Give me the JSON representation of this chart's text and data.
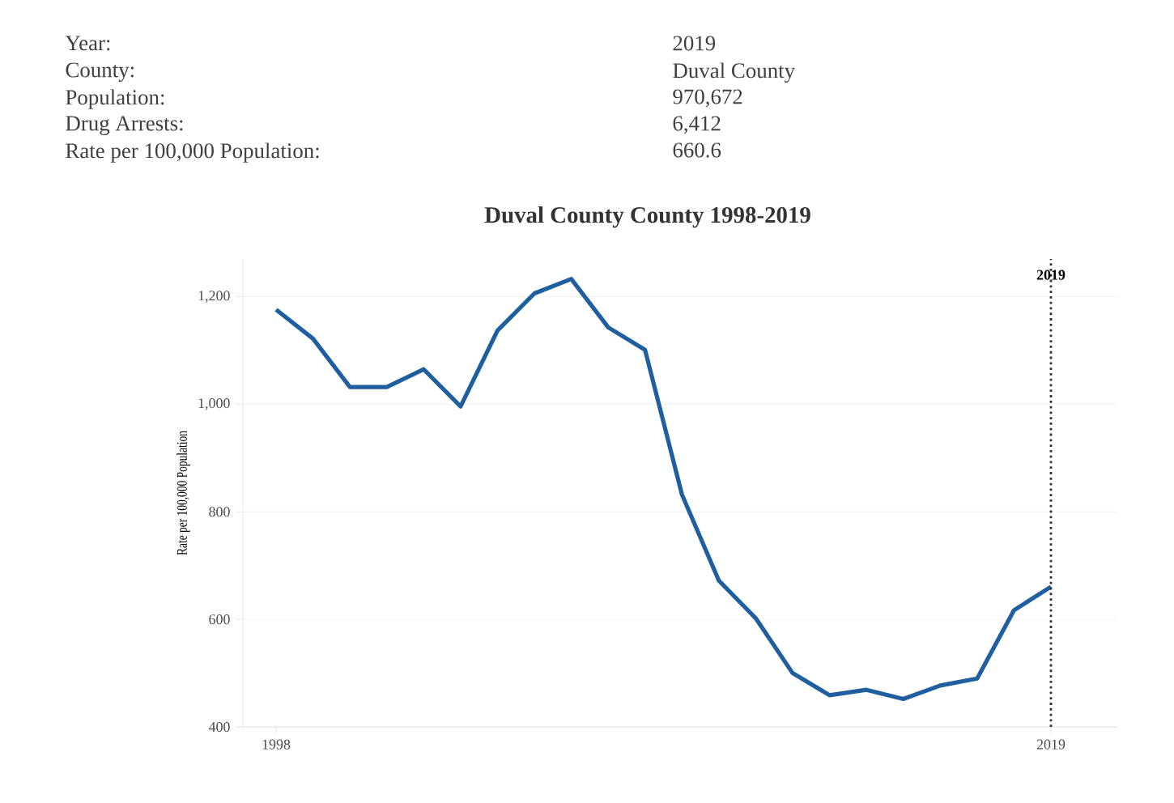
{
  "chart_data": {
    "type": "line",
    "title": "Duval County County 1998-2019",
    "ylabel": "Rate per 100,000 Population",
    "annotations": [
      "Year:",
      "2019",
      "County:",
      "Duval County",
      "Population:",
      "970,672",
      "Drug Arrests:",
      "6,412",
      "Rate per 100,000 Population:",
      "660.6"
    ],
    "x": [
      1998,
      1999,
      2000,
      2001,
      2002,
      2003,
      2004,
      2005,
      2006,
      2007,
      2008,
      2009,
      2010,
      2011,
      2012,
      2013,
      2014,
      2015,
      2016,
      2017,
      2018,
      2019
    ],
    "series": [
      {
        "color": "#1f5f9f",
        "values": [
          1176,
          1122,
          1032,
          1032,
          1065,
          996,
          1137,
          1206,
          1233,
          1143,
          1101,
          832,
          672,
          602,
          500,
          459,
          469,
          452,
          477,
          490,
          617,
          660.6
        ]
      }
    ],
    "xlim": [
      1997.1,
      2020.8
    ],
    "ylim": [
      400,
      1270
    ],
    "xticks": [
      1998,
      2019
    ],
    "yticks": [
      {
        "value": 400,
        "label": "400"
      },
      {
        "value": 600,
        "label": "600"
      },
      {
        "value": 800,
        "label": "800"
      },
      {
        "value": 1000,
        "label": "1,000"
      },
      {
        "value": 1200,
        "label": "1,200"
      }
    ],
    "ref_lines": [
      {
        "axis": "x",
        "value": 2019,
        "label": "2019",
        "line_style": "dotted"
      }
    ],
    "grid": "y",
    "marker": "none",
    "line_style": "solid"
  }
}
